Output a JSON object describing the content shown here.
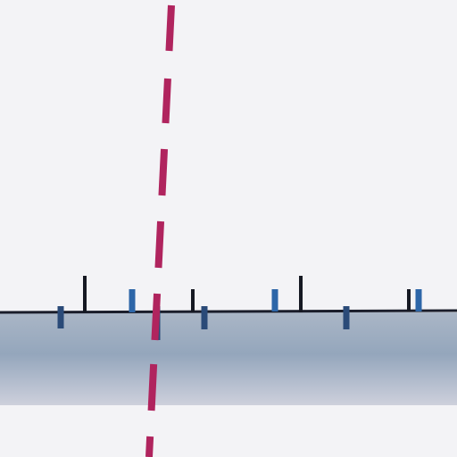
{
  "colors": {
    "background": "#f3f3f6",
    "band_top": "#aab6c6",
    "band_mid": "#94a6bc",
    "band_bottom": "#cdd0dc",
    "axis_line": "#1a1d2a",
    "tick_dark": "#151822",
    "tick_blue": "#2d66a8",
    "tick_navy": "#2a4a78",
    "dashed_line": "#b0245e"
  },
  "elements": {
    "ticks": [
      {
        "kind": "above",
        "color": "tick_dark"
      },
      {
        "kind": "below",
        "color": "tick_navy"
      },
      {
        "kind": "above",
        "color": "tick_blue"
      },
      {
        "kind": "above",
        "color": "tick_dark"
      },
      {
        "kind": "below",
        "color": "tick_navy"
      },
      {
        "kind": "above",
        "color": "tick_blue"
      },
      {
        "kind": "above",
        "color": "tick_dark"
      },
      {
        "kind": "below",
        "color": "tick_navy"
      },
      {
        "kind": "above",
        "color": "tick_dark"
      },
      {
        "kind": "above",
        "color": "tick_blue"
      },
      {
        "kind": "below",
        "color": "tick_navy"
      }
    ]
  }
}
